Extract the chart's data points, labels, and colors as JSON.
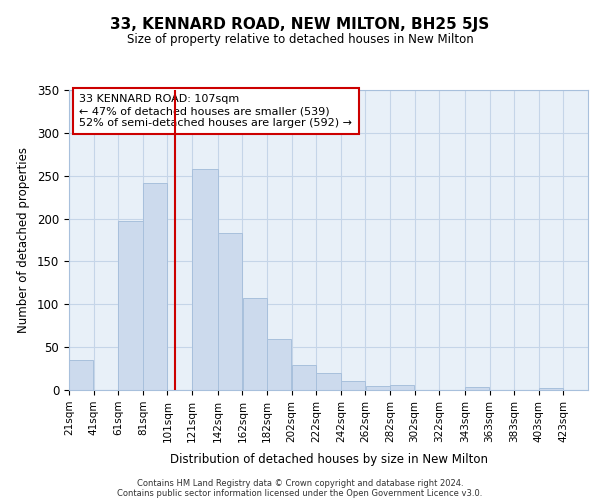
{
  "title": "33, KENNARD ROAD, NEW MILTON, BH25 5JS",
  "subtitle": "Size of property relative to detached houses in New Milton",
  "xlabel": "Distribution of detached houses by size in New Milton",
  "ylabel": "Number of detached properties",
  "bar_left_edges": [
    21,
    41,
    61,
    81,
    101,
    121,
    142,
    162,
    182,
    202,
    222,
    242,
    262,
    282,
    302,
    322,
    343,
    363,
    383,
    403
  ],
  "bar_widths": [
    20,
    20,
    20,
    20,
    20,
    21,
    20,
    20,
    20,
    20,
    20,
    20,
    20,
    20,
    20,
    21,
    20,
    20,
    20,
    20
  ],
  "bar_heights": [
    35,
    0,
    197,
    241,
    0,
    258,
    183,
    107,
    60,
    29,
    20,
    10,
    5,
    6,
    0,
    0,
    3,
    0,
    0,
    2
  ],
  "tick_labels": [
    "21sqm",
    "41sqm",
    "61sqm",
    "81sqm",
    "101sqm",
    "121sqm",
    "142sqm",
    "162sqm",
    "182sqm",
    "202sqm",
    "222sqm",
    "242sqm",
    "262sqm",
    "282sqm",
    "302sqm",
    "322sqm",
    "343sqm",
    "363sqm",
    "383sqm",
    "403sqm",
    "423sqm"
  ],
  "tick_positions": [
    21,
    41,
    61,
    81,
    101,
    121,
    142,
    162,
    182,
    202,
    222,
    242,
    262,
    282,
    302,
    322,
    343,
    363,
    383,
    403,
    423
  ],
  "bar_color": "#ccdaed",
  "bar_edge_color": "#a8c0dc",
  "grid_color": "#c5d5e8",
  "background_color": "#e8f0f8",
  "vline_x": 107,
  "vline_color": "#cc0000",
  "annotation_line1": "33 KENNARD ROAD: 107sqm",
  "annotation_line2": "← 47% of detached houses are smaller (539)",
  "annotation_line3": "52% of semi-detached houses are larger (592) →",
  "annotation_box_color": "#ffffff",
  "annotation_border_color": "#cc0000",
  "ylim": [
    0,
    350
  ],
  "xlim": [
    21,
    443
  ],
  "yticks": [
    0,
    50,
    100,
    150,
    200,
    250,
    300,
    350
  ],
  "footer1": "Contains HM Land Registry data © Crown copyright and database right 2024.",
  "footer2": "Contains public sector information licensed under the Open Government Licence v3.0."
}
